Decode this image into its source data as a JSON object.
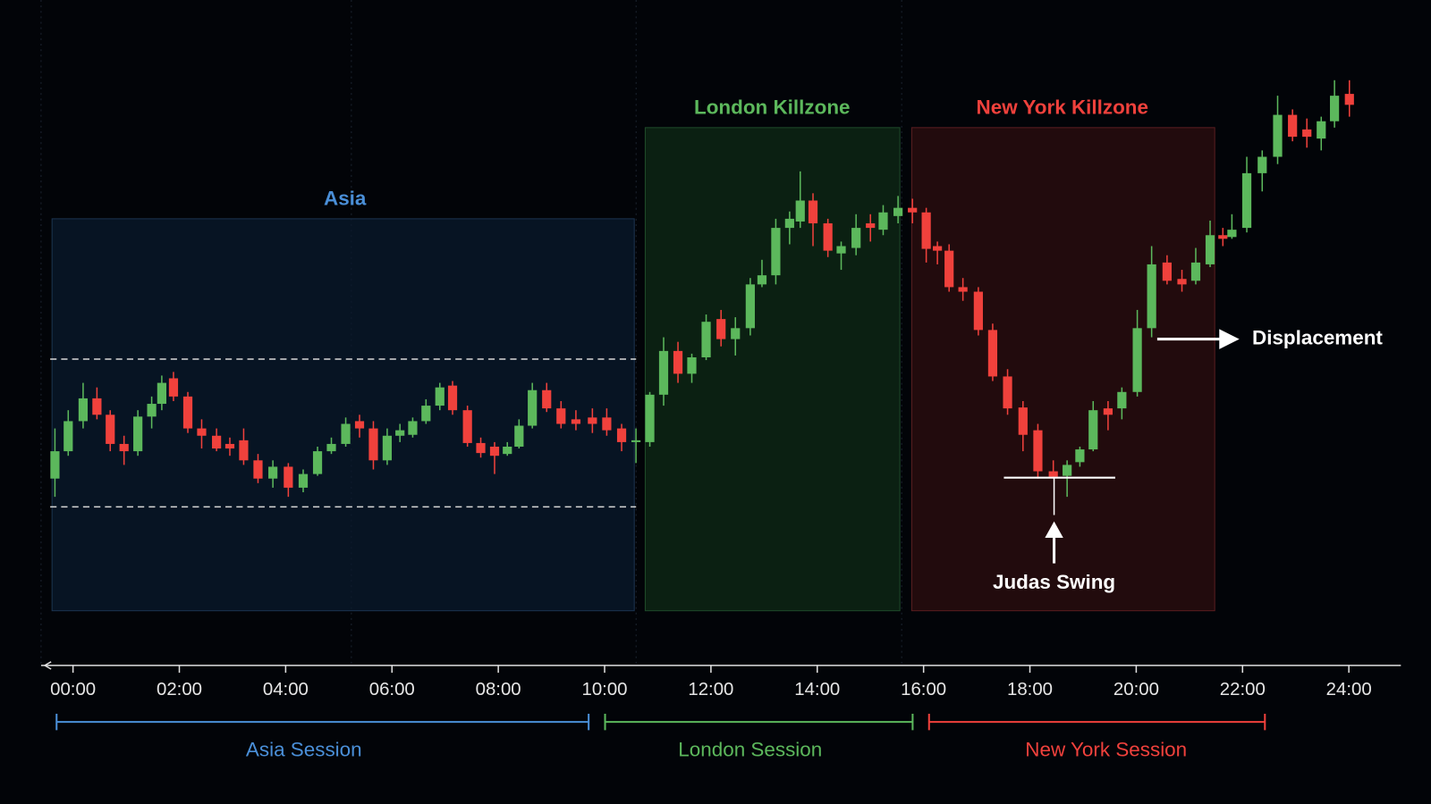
{
  "chart_data": {
    "type": "candlestick",
    "up_color": "#5cb85c",
    "down_color": "#f0413c",
    "xlim": [
      -0.6,
      25
    ],
    "xticks": [
      {
        "value": 0,
        "label": "00:00"
      },
      {
        "value": 2,
        "label": "02:00"
      },
      {
        "value": 4,
        "label": "04:00"
      },
      {
        "value": 6,
        "label": "06:00"
      },
      {
        "value": 8,
        "label": "08:00"
      },
      {
        "value": 10,
        "label": "10:00"
      },
      {
        "value": 12,
        "label": "12:00"
      },
      {
        "value": 14,
        "label": "14:00"
      },
      {
        "value": 16,
        "label": "16:00"
      },
      {
        "value": 18,
        "label": "18:00"
      },
      {
        "value": 20,
        "label": "20:00"
      },
      {
        "value": 22,
        "label": "22:00"
      },
      {
        "value": 24,
        "label": "24:00"
      }
    ],
    "zones": [
      {
        "label": "Asia",
        "color": "#4a8fd8"
      },
      {
        "label": "London Killzone",
        "color": "#5cb85c"
      },
      {
        "label": "New York Killzone",
        "color": "#f0413c"
      }
    ],
    "sessions": [
      {
        "label": "Asia Session",
        "color": "#4a8fd8"
      },
      {
        "label": "London Session",
        "color": "#5cb85c"
      },
      {
        "label": "New York Session",
        "color": "#f0413c"
      }
    ],
    "annotations": {
      "displacement": "Displacement",
      "judas_swing": "Judas Swing"
    },
    "x": [
      -0.34,
      -0.09,
      0.19,
      0.45,
      0.7,
      0.96,
      1.22,
      1.48,
      1.67,
      1.89,
      2.16,
      2.42,
      2.7,
      2.95,
      3.21,
      3.48,
      3.76,
      4.05,
      4.33,
      4.6,
      4.86,
      5.13,
      5.39,
      5.65,
      5.91,
      6.15,
      6.39,
      6.64,
      6.9,
      7.14,
      7.42,
      7.67,
      7.93,
      8.17,
      8.39,
      8.64,
      8.91,
      9.18,
      9.46,
      9.77,
      10.04,
      10.32,
      10.59,
      10.85,
      11.11,
      11.38,
      11.64,
      11.91,
      12.19,
      12.46,
      12.74,
      12.96,
      13.22,
      13.48,
      13.68,
      13.92,
      14.2,
      14.45,
      14.73,
      15.0,
      15.24,
      15.52,
      15.79,
      16.05,
      16.26,
      16.48,
      16.74,
      17.03,
      17.3,
      17.58,
      17.87,
      18.15,
      18.44,
      18.7,
      18.94,
      19.19,
      19.47,
      19.73,
      20.02,
      20.29,
      20.58,
      20.86,
      21.12,
      21.39,
      21.63,
      21.8,
      22.08,
      22.37,
      22.66,
      22.94,
      23.21,
      23.48,
      23.73,
      24.01
    ],
    "open": [
      175,
      205,
      238,
      263,
      245,
      213,
      205,
      243,
      257,
      285,
      265,
      230,
      222,
      213,
      217,
      195,
      175,
      188,
      165,
      180,
      205,
      213,
      238,
      230,
      195,
      222,
      223,
      238,
      255,
      277,
      250,
      214,
      210,
      202,
      210,
      233,
      272,
      252,
      240,
      242,
      242,
      230,
      215,
      215,
      267,
      315,
      290,
      308,
      350,
      328,
      340,
      388,
      398,
      450,
      457,
      480,
      455,
      422,
      428,
      455,
      448,
      463,
      472,
      467,
      430,
      425,
      385,
      380,
      338,
      287,
      253,
      228,
      183,
      178,
      193,
      207,
      252,
      252,
      270,
      340,
      412,
      394,
      392,
      410,
      442,
      440,
      450,
      510,
      528,
      574,
      558,
      548,
      567,
      597
    ],
    "high": [
      230,
      250,
      280,
      275,
      250,
      222,
      250,
      265,
      288,
      292,
      270,
      240,
      230,
      220,
      230,
      202,
      195,
      192,
      185,
      210,
      220,
      242,
      245,
      238,
      230,
      235,
      242,
      262,
      280,
      282,
      255,
      220,
      215,
      215,
      240,
      280,
      280,
      260,
      250,
      252,
      252,
      235,
      230,
      270,
      330,
      325,
      312,
      355,
      360,
      352,
      395,
      415,
      460,
      468,
      512,
      488,
      460,
      435,
      465,
      465,
      475,
      485,
      482,
      472,
      435,
      432,
      395,
      385,
      345,
      295,
      260,
      235,
      195,
      195,
      210,
      260,
      260,
      275,
      360,
      430,
      420,
      404,
      428,
      458,
      450,
      465,
      528,
      535,
      595,
      580,
      570,
      572,
      612,
      612
    ],
    "low": [
      155,
      200,
      230,
      240,
      205,
      190,
      200,
      230,
      250,
      260,
      225,
      208,
      205,
      200,
      190,
      170,
      165,
      155,
      160,
      178,
      202,
      210,
      220,
      185,
      190,
      215,
      220,
      235,
      250,
      245,
      210,
      198,
      180,
      200,
      208,
      230,
      248,
      230,
      228,
      225,
      222,
      205,
      192,
      210,
      255,
      280,
      280,
      305,
      320,
      310,
      332,
      385,
      388,
      432,
      450,
      430,
      418,
      404,
      420,
      435,
      442,
      455,
      455,
      412,
      410,
      380,
      370,
      332,
      282,
      245,
      205,
      175,
      175,
      155,
      188,
      205,
      228,
      240,
      265,
      330,
      388,
      380,
      388,
      407,
      430,
      438,
      445,
      490,
      520,
      545,
      538,
      535,
      560,
      572
    ],
    "close": [
      205,
      238,
      263,
      245,
      213,
      205,
      243,
      257,
      280,
      265,
      230,
      222,
      208,
      208,
      195,
      175,
      188,
      165,
      180,
      205,
      213,
      235,
      230,
      195,
      222,
      228,
      238,
      255,
      275,
      250,
      214,
      203,
      200,
      210,
      233,
      272,
      252,
      235,
      235,
      235,
      228,
      215,
      217,
      267,
      315,
      290,
      308,
      347,
      328,
      340,
      388,
      398,
      450,
      460,
      480,
      455,
      425,
      430,
      450,
      450,
      467,
      472,
      467,
      427,
      425,
      385,
      380,
      338,
      287,
      252,
      223,
      183,
      177,
      190,
      207,
      250,
      245,
      270,
      340,
      410,
      392,
      388,
      412,
      442,
      438,
      448,
      510,
      528,
      574,
      550,
      550,
      567,
      595,
      585
    ]
  }
}
